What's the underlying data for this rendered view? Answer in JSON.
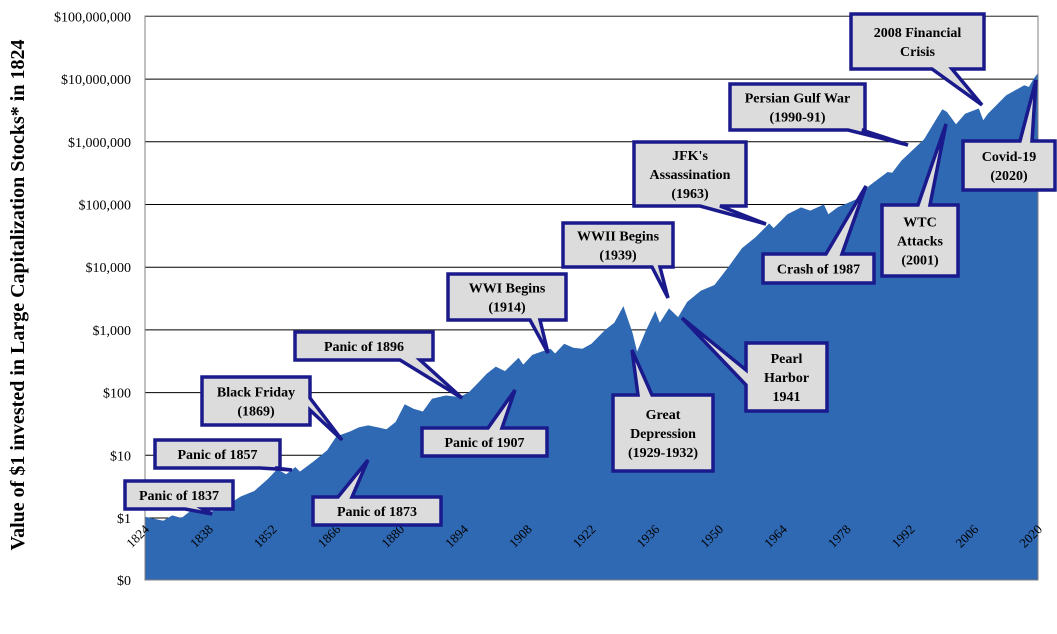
{
  "chart_data": {
    "type": "area",
    "title": "",
    "ylabel": "Value of $1 invested in Large Capitalization Stocks* in 1824",
    "xlabel": "",
    "y_scale": "log",
    "x_range": [
      1824,
      2020
    ],
    "y_ticks": [
      "$0",
      "$1",
      "$10",
      "$100",
      "$1,000",
      "$10,000",
      "$100,000",
      "$1,000,000",
      "$10,000,000",
      "$100,000,000"
    ],
    "x_ticks": [
      "1824",
      "1838",
      "1852",
      "1866",
      "1880",
      "1894",
      "1908",
      "1922",
      "1936",
      "1950",
      "1964",
      "1978",
      "1992",
      "2006",
      "2020"
    ],
    "grid": true,
    "fill_color": "#2f69b3",
    "series": [
      {
        "x": [
          1824,
          1826,
          1828,
          1830,
          1832,
          1834,
          1836,
          1837,
          1839,
          1842,
          1845,
          1848,
          1851,
          1853,
          1855,
          1857,
          1858,
          1861,
          1864,
          1866,
          1869,
          1871,
          1873,
          1875,
          1877,
          1879,
          1881,
          1883,
          1885,
          1887,
          1890,
          1893,
          1895,
          1897,
          1899,
          1901,
          1903,
          1906,
          1907,
          1909,
          1911,
          1913,
          1914,
          1916,
          1918,
          1920,
          1922,
          1925,
          1927,
          1929,
          1931,
          1932,
          1934,
          1936,
          1937,
          1939,
          1941,
          1943,
          1946,
          1949,
          1952,
          1955,
          1958,
          1961,
          1962,
          1965,
          1968,
          1970,
          1973,
          1974,
          1976,
          1980,
          1983,
          1987,
          1988,
          1990,
          1995,
          1999,
          2000,
          2002,
          2004,
          2007,
          2008,
          2009,
          2013,
          2017,
          2018,
          2019,
          2020
        ],
        "y": [
          1.05,
          0.95,
          0.85,
          1.1,
          1.0,
          1.3,
          1.5,
          1.15,
          1.3,
          1.6,
          2.2,
          2.7,
          4.2,
          6.0,
          5.0,
          6.5,
          5.5,
          8.0,
          12.0,
          20.0,
          24.0,
          28.0,
          30.0,
          28.0,
          26.0,
          34.0,
          65.0,
          55.0,
          50.0,
          80.0,
          90.0,
          85.0,
          100.0,
          140.0,
          200.0,
          260.0,
          220.0,
          360.0,
          280.0,
          400.0,
          450.0,
          500.0,
          420.0,
          600.0,
          520.0,
          500.0,
          600.0,
          1000.0,
          1300.0,
          2400.0,
          900.0,
          450.0,
          1000.0,
          2000.0,
          1300.0,
          2200.0,
          1600.0,
          2800.0,
          4200.0,
          5200.0,
          10000.0,
          20000.0,
          30000.0,
          50000.0,
          42000.0,
          70000.0,
          90000.0,
          80000.0,
          100000.0,
          70000.0,
          90000.0,
          120000.0,
          200000.0,
          330000.0,
          320000.0,
          500000.0,
          1100000.0,
          3300000.0,
          3000000.0,
          1900000.0,
          2800000.0,
          3400000.0,
          2200000.0,
          2800000.0,
          5500000.0,
          8000000.0,
          7500000.0,
          10000000.0,
          12500000.0
        ]
      }
    ],
    "annotations": [
      {
        "id": "panic-1837",
        "lines": [
          "Panic of 1837"
        ]
      },
      {
        "id": "panic-1857",
        "lines": [
          "Panic of 1857"
        ]
      },
      {
        "id": "black-friday",
        "lines": [
          "Black Friday",
          "(1869)"
        ]
      },
      {
        "id": "panic-1873",
        "lines": [
          "Panic of 1873"
        ]
      },
      {
        "id": "panic-1896",
        "lines": [
          "Panic of 1896"
        ]
      },
      {
        "id": "panic-1907",
        "lines": [
          "Panic of 1907"
        ]
      },
      {
        "id": "wwi",
        "lines": [
          "WWI Begins",
          "(1914)"
        ]
      },
      {
        "id": "wwii",
        "lines": [
          "WWII Begins",
          "(1939)"
        ]
      },
      {
        "id": "great-depression",
        "lines": [
          "Great",
          "Depression",
          "(1929-1932)"
        ]
      },
      {
        "id": "pearl-harbor",
        "lines": [
          "Pearl",
          "Harbor",
          "1941"
        ]
      },
      {
        "id": "jfk",
        "lines": [
          "JFK's",
          "Assassination",
          "(1963)"
        ]
      },
      {
        "id": "crash-1987",
        "lines": [
          "Crash of 1987"
        ]
      },
      {
        "id": "gulf-war",
        "lines": [
          "Persian Gulf War",
          "(1990-91)"
        ]
      },
      {
        "id": "wtc",
        "lines": [
          "WTC",
          "Attacks",
          "(2001)"
        ]
      },
      {
        "id": "financial-crisis",
        "lines": [
          "2008 Financial",
          "Crisis"
        ]
      },
      {
        "id": "covid",
        "lines": [
          "Covid-19",
          "(2020)"
        ]
      }
    ]
  }
}
